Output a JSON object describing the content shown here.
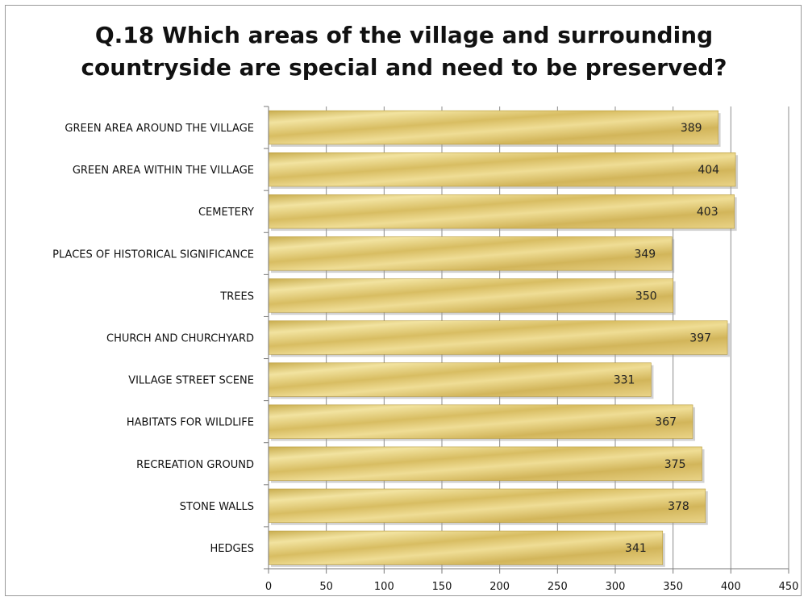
{
  "chart_data": {
    "type": "bar",
    "orientation": "horizontal",
    "title_lines": [
      "Q.18  Which areas of the village and surrounding",
      "countryside are special and need to be preserved?"
    ],
    "categories": [
      "GREEN AREA AROUND THE VILLAGE",
      "GREEN AREA WITHIN THE VILLAGE",
      "CEMETERY",
      "PLACES OF HISTORICAL SIGNIFICANCE",
      "TREES",
      "CHURCH AND CHURCHYARD",
      "VILLAGE STREET SCENE",
      "HABITATS FOR WILDLIFE",
      "RECREATION GROUND",
      "STONE WALLS",
      "HEDGES"
    ],
    "values": [
      389,
      404,
      403,
      349,
      350,
      397,
      331,
      367,
      375,
      378,
      341
    ],
    "xlim": [
      0,
      450
    ],
    "xticks": [
      0,
      50,
      100,
      150,
      200,
      250,
      300,
      350,
      400,
      450
    ],
    "grid": "vertical",
    "data_labels": true,
    "colors": {
      "bar_light": "#f3e6a6",
      "bar_mid": "#ddc46a",
      "bar_dark": "#b89a3a",
      "grid": "#8c8c8c",
      "axis": "#7a7a7a"
    }
  }
}
